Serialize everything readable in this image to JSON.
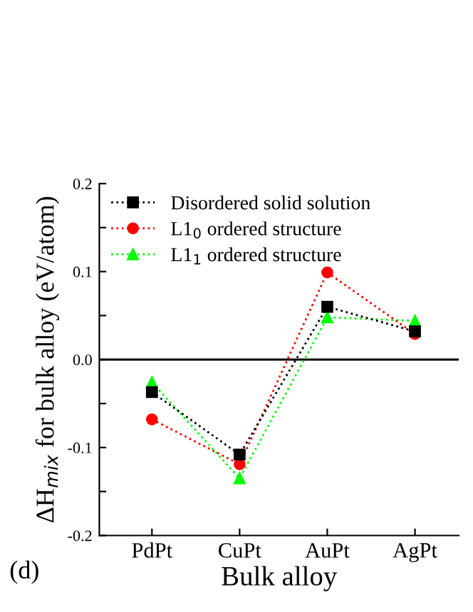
{
  "chart_data": {
    "type": "line",
    "xlabel": "Bulk alloy",
    "ylabel": "ΔH$_{mix}$ for bulk alloy (eV/atom)",
    "categories": [
      "PdPt",
      "CuPt",
      "AuPt",
      "AgPt"
    ],
    "series": [
      {
        "name": "Disordered solid solution",
        "color": "#000000",
        "marker": "square",
        "values": [
          -0.037,
          -0.108,
          0.06,
          0.032
        ]
      },
      {
        "name": "L1$_{0}$ ordered structure",
        "color": "#ff0000",
        "marker": "circle",
        "values": [
          -0.068,
          -0.119,
          0.099,
          0.029
        ]
      },
      {
        "name": "L1$_{1}$ ordered structure",
        "color": "#00ff00",
        "marker": "triangle",
        "values": [
          -0.026,
          -0.135,
          0.048,
          0.044
        ]
      }
    ],
    "line_style": "dotted",
    "ylim": [
      -0.2,
      0.2
    ],
    "yticks": [
      -0.2,
      {
        "value": -0.15,
        "label": null
      },
      -0.1,
      {
        "value": -0.05,
        "label": null
      },
      {
        "value": 0,
        "label": "0.0"
      },
      {
        "value": 0.05,
        "label": null
      },
      0.1,
      {
        "value": 0.15,
        "label": null
      },
      0.2
    ],
    "ref_lines": [
      {
        "axis": "y",
        "value": 0,
        "color": "#000000",
        "line_style": "solid"
      }
    ],
    "grid": false,
    "legend": "top left",
    "annotations": [
      "(d)"
    ]
  }
}
